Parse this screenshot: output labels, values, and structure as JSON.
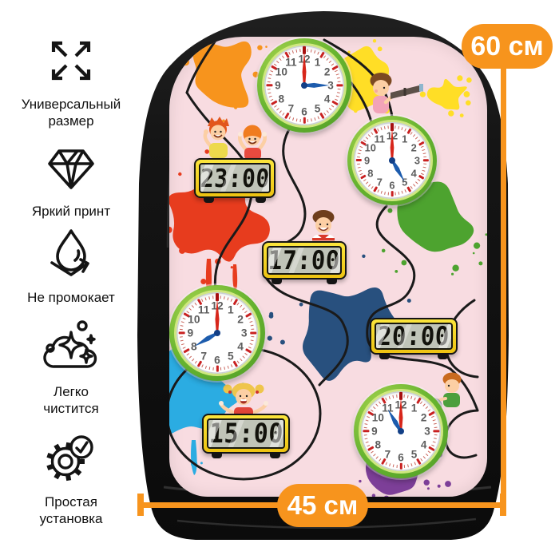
{
  "features": [
    {
      "icon": "expand-arrows-icon",
      "line1": "Универсальный",
      "line2": "размер"
    },
    {
      "icon": "diamond-icon",
      "line1": "Яркий принт",
      "line2": ""
    },
    {
      "icon": "waterproof-drop-icon",
      "line1": "Не промокает",
      "line2": ""
    },
    {
      "icon": "sparkle-clean-icon",
      "line1": "Легко",
      "line2": "чистится"
    },
    {
      "icon": "gear-check-icon",
      "line1": "Простая",
      "line2": "установка"
    }
  ],
  "dimensions": {
    "height": "60 см",
    "width": "45 см",
    "accent_color": "#F7941D"
  },
  "print": {
    "panel_color": "#F8DCE1",
    "analog_clocks": [
      {
        "position": "top",
        "time": "3:00",
        "hour": 3
      },
      {
        "position": "upper-right",
        "time": "5:00",
        "hour": 5
      },
      {
        "position": "middle-left",
        "time": "8:00",
        "hour": 8
      },
      {
        "position": "lower-right",
        "time": "11:00",
        "hour": 11
      }
    ],
    "digital_clocks": [
      {
        "time": "23:00"
      },
      {
        "time": "17:00"
      },
      {
        "time": "20:00"
      },
      {
        "time": "15:00"
      }
    ],
    "splatter_colors": {
      "orange": "#F7941D",
      "yellow": "#FFDE26",
      "red": "#E73C1E",
      "green": "#4DA32F",
      "navy": "#28507E",
      "cyan": "#2BACE2",
      "purple": "#7D3F98"
    },
    "characters": [
      "boy-and-girl-waving",
      "girl-with-telescope",
      "boy-striped-shirt",
      "girl-with-pigtails",
      "boy-with-magnifying-glass"
    ]
  }
}
